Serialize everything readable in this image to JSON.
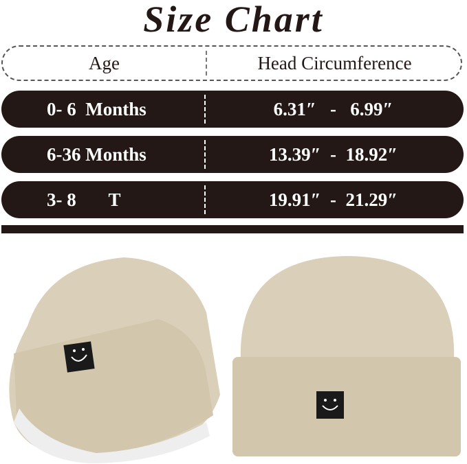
{
  "title": "Size Chart",
  "table": {
    "headers": [
      "Age",
      "Head Circumference"
    ],
    "rows": [
      {
        "age": "0- 6  Months",
        "range": "6.31″   -   6.99″"
      },
      {
        "age": "6-36 Months",
        "range": "13.39″  -  18.92″"
      },
      {
        "age": "3- 8       T",
        "range": "19.91″  -  21.29″"
      }
    ]
  },
  "colors": {
    "dark": "#231815",
    "hat": "#dacfb8",
    "patch": "#1a1a1a"
  },
  "images": [
    "beanie-angled-view",
    "beanie-front-view"
  ]
}
